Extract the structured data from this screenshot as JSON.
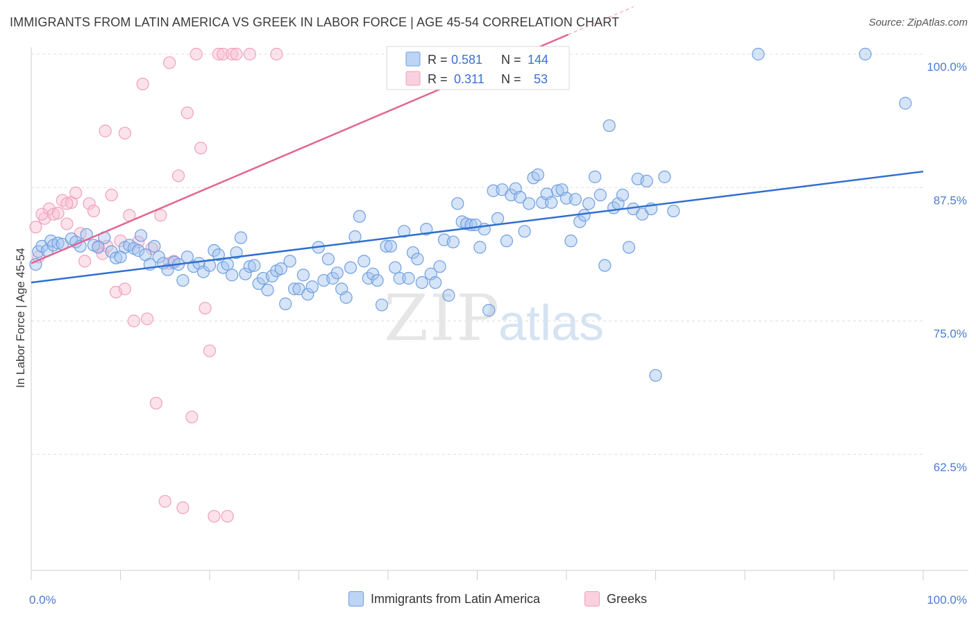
{
  "header": {
    "title": "IMMIGRANTS FROM LATIN AMERICA VS GREEK IN LABOR FORCE | AGE 45-54 CORRELATION CHART",
    "source": "Source: ZipAtlas.com"
  },
  "watermark": {
    "zip": "ZIP",
    "atlas": "atlas"
  },
  "legend_top": [
    {
      "r_label": "R =",
      "r_value": "0.581",
      "n_label": "N =",
      "n_value": "144",
      "color": "#6f9fe0"
    },
    {
      "r_label": "R =",
      "r_value": "0.311",
      "n_label": "N =",
      "n_value": "53",
      "color": "#f0a0bb"
    }
  ],
  "legend_bottom": [
    {
      "label": "Immigrants from Latin America",
      "color": "#a8c8f5"
    },
    {
      "label": "Greeks",
      "color": "#f8c4d4"
    }
  ],
  "colors": {
    "blue_fill": "rgba(164,196,240,0.45)",
    "blue_stroke": "#6f9fe0",
    "blue_line": "#2f6fd0",
    "pink_fill": "rgba(248,190,210,0.45)",
    "pink_stroke": "#f0a0bb",
    "pink_line": "#e3668f",
    "grid": "#dddddd",
    "axis_tick": "#4a7bd0"
  },
  "chart_data": {
    "type": "scatter",
    "title": "IMMIGRANTS FROM LATIN AMERICA VS GREEK IN LABOR FORCE | AGE 45-54 CORRELATION CHART",
    "xlabel": "",
    "ylabel": "In Labor Force | Age 45-54",
    "xlim": [
      0,
      100
    ],
    "ylim": [
      50,
      100.5
    ],
    "x_tick_labels": [
      "0.0%",
      "100.0%"
    ],
    "y_ticks": [
      62.5,
      75.0,
      87.5,
      100.0
    ],
    "y_tick_labels": [
      "62.5%",
      "75.0%",
      "87.5%",
      "100.0%"
    ],
    "grid": true,
    "legend_position": "top-center",
    "series": [
      {
        "name": "Immigrants from Latin America",
        "trend": {
          "x": [
            0,
            100
          ],
          "y": [
            78.6,
            89.0
          ]
        },
        "points": [
          [
            0.5,
            80.3
          ],
          [
            0.8,
            81.5
          ],
          [
            1.2,
            82.0
          ],
          [
            1.8,
            81.6
          ],
          [
            2.2,
            82.5
          ],
          [
            2.5,
            82.1
          ],
          [
            3.0,
            82.3
          ],
          [
            3.5,
            82.2
          ],
          [
            4.5,
            82.7
          ],
          [
            5.0,
            82.4
          ],
          [
            5.5,
            82.0
          ],
          [
            6.2,
            83.1
          ],
          [
            7.0,
            82.1
          ],
          [
            7.5,
            81.9
          ],
          [
            8.2,
            82.8
          ],
          [
            9.0,
            81.5
          ],
          [
            9.5,
            80.9
          ],
          [
            10.0,
            81.0
          ],
          [
            10.5,
            81.9
          ],
          [
            11.0,
            82.1
          ],
          [
            11.5,
            81.8
          ],
          [
            12.0,
            81.6
          ],
          [
            12.3,
            83.0
          ],
          [
            12.8,
            81.2
          ],
          [
            13.3,
            80.3
          ],
          [
            13.8,
            82.0
          ],
          [
            14.3,
            81.0
          ],
          [
            14.8,
            80.4
          ],
          [
            15.3,
            79.8
          ],
          [
            16.0,
            80.5
          ],
          [
            16.5,
            80.3
          ],
          [
            17.0,
            78.8
          ],
          [
            17.5,
            81.0
          ],
          [
            18.2,
            80.1
          ],
          [
            18.8,
            80.4
          ],
          [
            19.3,
            79.6
          ],
          [
            20.0,
            80.2
          ],
          [
            20.5,
            81.6
          ],
          [
            21.0,
            81.2
          ],
          [
            21.5,
            80.0
          ],
          [
            22.0,
            80.3
          ],
          [
            22.5,
            79.3
          ],
          [
            23.0,
            81.4
          ],
          [
            23.5,
            82.8
          ],
          [
            24.0,
            79.4
          ],
          [
            24.5,
            80.1
          ],
          [
            25.0,
            80.2
          ],
          [
            25.5,
            78.5
          ],
          [
            26.0,
            79.0
          ],
          [
            26.5,
            77.9
          ],
          [
            27.0,
            79.2
          ],
          [
            27.5,
            79.7
          ],
          [
            28.0,
            79.9
          ],
          [
            28.5,
            76.6
          ],
          [
            29.0,
            80.6
          ],
          [
            29.5,
            78.0
          ],
          [
            30.0,
            78.0
          ],
          [
            30.5,
            79.3
          ],
          [
            31.0,
            77.5
          ],
          [
            31.5,
            78.2
          ],
          [
            32.2,
            81.9
          ],
          [
            32.8,
            78.8
          ],
          [
            33.3,
            80.8
          ],
          [
            33.8,
            79.0
          ],
          [
            34.3,
            79.5
          ],
          [
            34.8,
            78.0
          ],
          [
            35.3,
            77.2
          ],
          [
            35.8,
            80.0
          ],
          [
            36.3,
            82.9
          ],
          [
            36.8,
            84.8
          ],
          [
            37.3,
            80.6
          ],
          [
            37.8,
            79.0
          ],
          [
            38.3,
            79.4
          ],
          [
            38.8,
            78.8
          ],
          [
            39.3,
            76.5
          ],
          [
            39.8,
            82.0
          ],
          [
            40.3,
            82.0
          ],
          [
            40.8,
            80.0
          ],
          [
            41.3,
            79.0
          ],
          [
            41.8,
            83.4
          ],
          [
            42.3,
            79.0
          ],
          [
            42.8,
            81.4
          ],
          [
            43.3,
            80.8
          ],
          [
            43.8,
            78.6
          ],
          [
            44.3,
            83.6
          ],
          [
            44.8,
            79.4
          ],
          [
            45.3,
            78.6
          ],
          [
            45.8,
            80.1
          ],
          [
            46.3,
            82.6
          ],
          [
            46.8,
            77.4
          ],
          [
            47.3,
            82.4
          ],
          [
            47.8,
            86.0
          ],
          [
            48.3,
            84.3
          ],
          [
            48.8,
            84.1
          ],
          [
            49.3,
            84.0
          ],
          [
            49.8,
            84.0
          ],
          [
            50.3,
            81.9
          ],
          [
            50.8,
            83.6
          ],
          [
            51.3,
            76.0
          ],
          [
            51.8,
            87.2
          ],
          [
            52.3,
            84.6
          ],
          [
            52.8,
            87.3
          ],
          [
            53.3,
            82.5
          ],
          [
            53.8,
            86.8
          ],
          [
            54.3,
            87.4
          ],
          [
            54.8,
            86.6
          ],
          [
            55.3,
            83.4
          ],
          [
            55.8,
            86.0
          ],
          [
            56.3,
            88.4
          ],
          [
            56.8,
            88.7
          ],
          [
            57.3,
            86.1
          ],
          [
            57.8,
            86.9
          ],
          [
            58.3,
            86.1
          ],
          [
            59.0,
            87.2
          ],
          [
            59.5,
            87.3
          ],
          [
            60.0,
            86.5
          ],
          [
            60.5,
            82.5
          ],
          [
            61.0,
            86.4
          ],
          [
            61.5,
            84.3
          ],
          [
            62.0,
            84.9
          ],
          [
            62.5,
            86.0
          ],
          [
            63.2,
            88.5
          ],
          [
            63.8,
            86.8
          ],
          [
            64.3,
            80.2
          ],
          [
            64.8,
            93.3
          ],
          [
            65.3,
            85.6
          ],
          [
            65.8,
            86.0
          ],
          [
            66.3,
            86.8
          ],
          [
            67.0,
            81.9
          ],
          [
            67.5,
            85.5
          ],
          [
            68.0,
            88.3
          ],
          [
            68.5,
            85.0
          ],
          [
            69.0,
            88.1
          ],
          [
            69.5,
            85.5
          ],
          [
            70.0,
            69.9
          ],
          [
            71.0,
            88.5
          ],
          [
            72.0,
            85.3
          ],
          [
            81.5,
            100.0
          ],
          [
            93.5,
            100.0
          ],
          [
            98.0,
            95.4
          ]
        ]
      },
      {
        "name": "Greeks",
        "trend": {
          "x": [
            0,
            100
          ],
          "y": [
            80.4,
            116.0
          ]
        },
        "points": [
          [
            0.5,
            83.8
          ],
          [
            0.8,
            81.0
          ],
          [
            1.5,
            84.6
          ],
          [
            2.0,
            85.5
          ],
          [
            2.5,
            85.0
          ],
          [
            3.0,
            85.1
          ],
          [
            3.5,
            86.3
          ],
          [
            4.0,
            84.1
          ],
          [
            4.5,
            86.1
          ],
          [
            5.0,
            87.0
          ],
          [
            5.5,
            83.2
          ],
          [
            6.0,
            80.6
          ],
          [
            6.5,
            86.0
          ],
          [
            7.0,
            85.3
          ],
          [
            7.5,
            82.0
          ],
          [
            8.0,
            81.3
          ],
          [
            8.5,
            82.0
          ],
          [
            9.0,
            86.8
          ],
          [
            9.5,
            77.7
          ],
          [
            10.0,
            82.5
          ],
          [
            10.5,
            78.0
          ],
          [
            11.0,
            84.9
          ],
          [
            11.5,
            75.0
          ],
          [
            12.0,
            82.4
          ],
          [
            12.5,
            97.2
          ],
          [
            13.0,
            75.2
          ],
          [
            13.5,
            81.8
          ],
          [
            14.0,
            67.3
          ],
          [
            14.5,
            84.9
          ],
          [
            15.0,
            58.1
          ],
          [
            15.5,
            99.2
          ],
          [
            16.0,
            80.6
          ],
          [
            16.5,
            88.6
          ],
          [
            17.0,
            57.5
          ],
          [
            17.5,
            94.5
          ],
          [
            18.0,
            66.0
          ],
          [
            18.5,
            100.0
          ],
          [
            19.0,
            91.2
          ],
          [
            19.5,
            76.2
          ],
          [
            20.0,
            72.2
          ],
          [
            20.5,
            56.7
          ],
          [
            21.0,
            100.0
          ],
          [
            21.5,
            100.0
          ],
          [
            22.0,
            56.7
          ],
          [
            22.5,
            100.0
          ],
          [
            23.0,
            100.0
          ],
          [
            27.5,
            100.0
          ],
          [
            8.3,
            92.8
          ],
          [
            10.5,
            92.6
          ],
          [
            15.5,
            80.4
          ],
          [
            4.0,
            86.0
          ],
          [
            1.2,
            85.0
          ],
          [
            24.5,
            100.0
          ]
        ]
      }
    ]
  }
}
